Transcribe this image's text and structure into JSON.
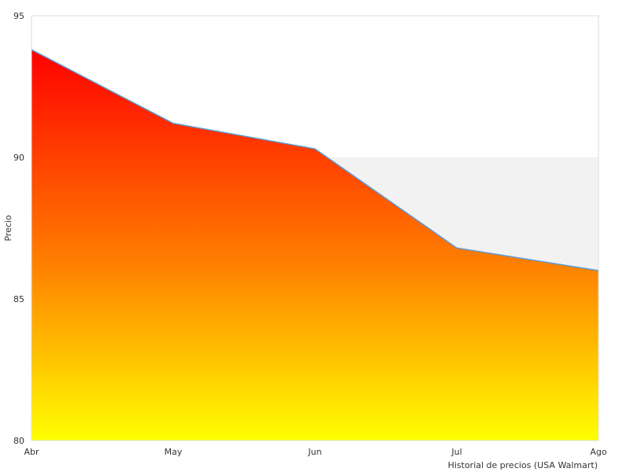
{
  "chart_data": {
    "type": "area",
    "categories": [
      "Abr",
      "May",
      "Jun",
      "Jul",
      "Ago"
    ],
    "series": [
      {
        "values": [
          93.8,
          91.2,
          90.3,
          86.8,
          86.0
        ]
      }
    ],
    "ylabel": "Precio",
    "xlabel": "Historial de precios (USA Walmart)",
    "ylim": [
      80,
      95
    ],
    "yticks": [
      "95",
      "90",
      "85",
      "80"
    ],
    "band": [
      85,
      90
    ],
    "grid": false,
    "colors": {
      "gradient_top": "#ff0000",
      "gradient_mid": "#ff8000",
      "gradient_bottom": "#ffff00",
      "line": "#5b9bd5",
      "band": "#f2f2f2",
      "frame": "#dddddd"
    }
  }
}
